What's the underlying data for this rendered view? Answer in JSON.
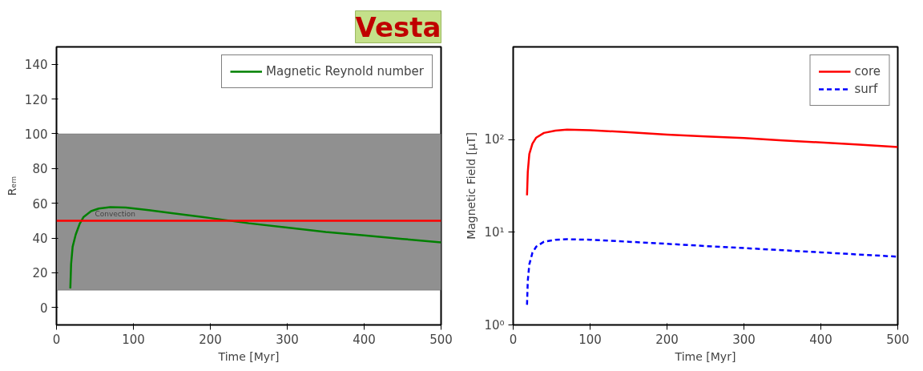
{
  "chart_data": [
    {
      "type": "line",
      "title": "Vesta",
      "xlabel": "Time [Myr]",
      "ylabel": "Rₑₘ",
      "xlim": [
        0,
        500
      ],
      "xticks": [
        0,
        100,
        200,
        300,
        400,
        500
      ],
      "ylim": [
        -10,
        150
      ],
      "yticks": [
        0,
        20,
        40,
        60,
        80,
        100,
        120,
        140
      ],
      "grid": false,
      "legend": "top right",
      "bands": [
        {
          "axis": "y",
          "from": 10,
          "to": 100,
          "color": "#909090"
        }
      ],
      "ref_lines": [
        {
          "axis": "y",
          "value": 50,
          "label": "Convection",
          "color": "#ff0000"
        }
      ],
      "series": [
        {
          "name": "Magnetic Reynold number",
          "color": "#008000",
          "line_style": "solid",
          "x": [
            18,
            19,
            21,
            25,
            30,
            35,
            45,
            55,
            70,
            90,
            120,
            150,
            200,
            250,
            300,
            350,
            400,
            450,
            500
          ],
          "values": [
            11,
            25,
            35,
            42,
            48,
            52,
            55.5,
            57,
            57.8,
            57.5,
            56,
            54.3,
            51.5,
            48.5,
            46,
            43.5,
            41.5,
            39.5,
            37.5
          ]
        }
      ]
    },
    {
      "type": "line",
      "xlabel": "Time [Myr]",
      "ylabel": "Magnetic Field [μT]",
      "log": "y",
      "xlim": [
        0,
        500
      ],
      "xticks": [
        0,
        100,
        200,
        300,
        400,
        500
      ],
      "ylim": [
        1,
        1000
      ],
      "yticks": [
        {
          "value": 1,
          "label": "10⁰"
        },
        {
          "value": 10,
          "label": "10¹"
        },
        {
          "value": 100,
          "label": "10²"
        }
      ],
      "grid": false,
      "legend": "top right",
      "series": [
        {
          "name": "core",
          "color": "#ff0000",
          "line_style": "solid",
          "x": [
            18,
            19,
            21,
            25,
            30,
            40,
            55,
            70,
            100,
            150,
            200,
            250,
            300,
            350,
            400,
            450,
            500
          ],
          "values": [
            25,
            45,
            70,
            90,
            105,
            118,
            125,
            128,
            126,
            120,
            113,
            108,
            104,
            98,
            93,
            88,
            83
          ]
        },
        {
          "name": "surf",
          "color": "#0000ff",
          "line_style": "dashed",
          "x": [
            18,
            19,
            21,
            25,
            30,
            40,
            55,
            70,
            100,
            150,
            200,
            250,
            300,
            350,
            400,
            450,
            500
          ],
          "values": [
            1.65,
            3,
            4.5,
            6,
            7,
            7.9,
            8.3,
            8.4,
            8.3,
            7.9,
            7.5,
            7.1,
            6.75,
            6.4,
            6.07,
            5.75,
            5.45
          ]
        }
      ]
    }
  ]
}
